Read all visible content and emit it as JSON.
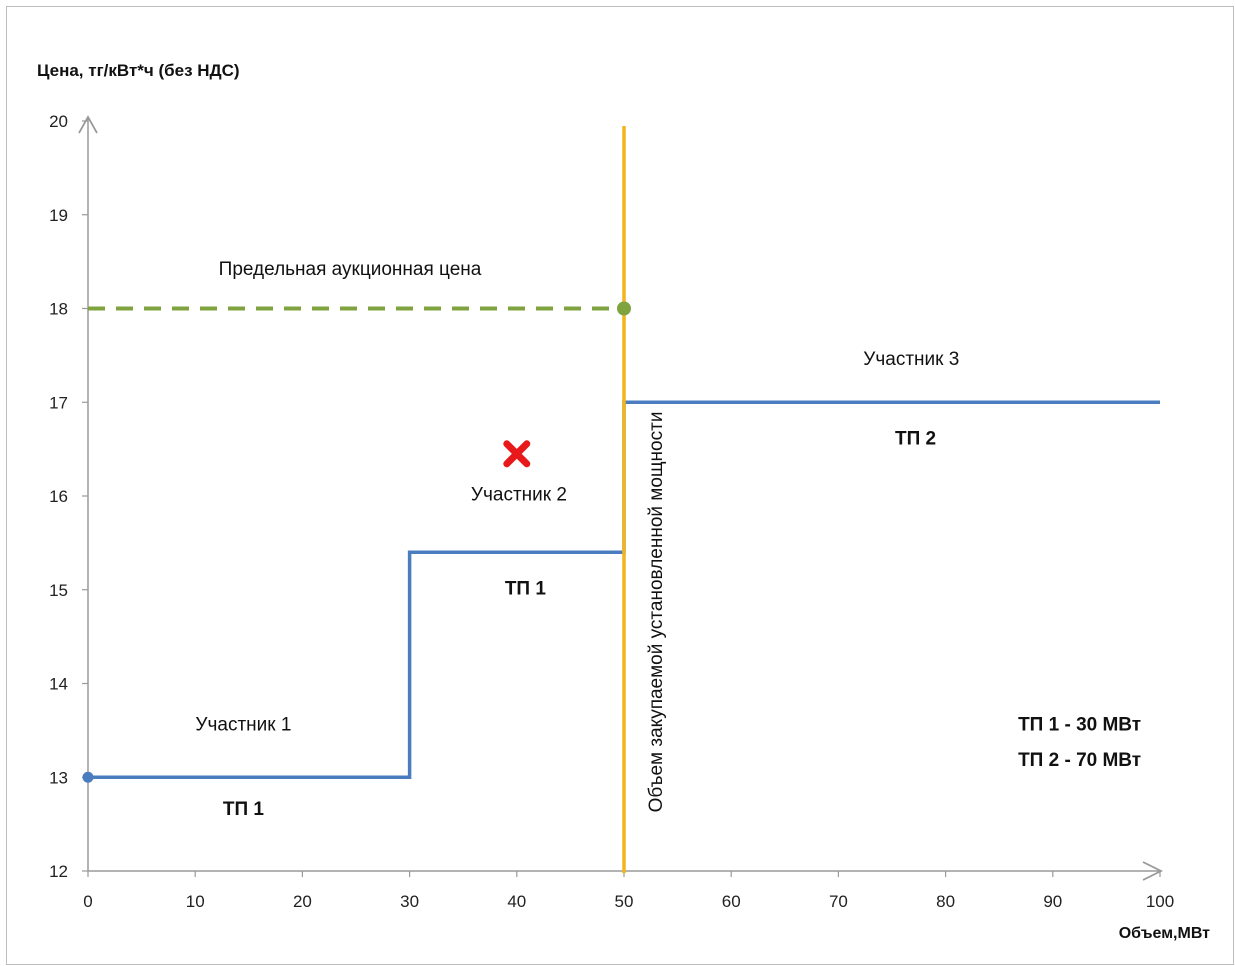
{
  "chart_data": {
    "type": "line",
    "title": "",
    "ylabel": "Цена, тг/кВт*ч (без НДС)",
    "xlabel": "Объем,МВт",
    "xlim": [
      0,
      100
    ],
    "ylim": [
      12,
      20
    ],
    "x_ticks": [
      0,
      10,
      20,
      30,
      40,
      50,
      60,
      70,
      80,
      90,
      100
    ],
    "y_ticks": [
      12,
      13,
      14,
      15,
      16,
      17,
      18,
      19,
      20
    ],
    "grid": false,
    "series": [
      {
        "color": "#4a7dbf",
        "x": [
          0,
          30,
          30,
          50,
          50,
          100
        ],
        "y": [
          13,
          13,
          15.4,
          15.4,
          17,
          17
        ]
      }
    ],
    "price_cap": {
      "label": "Предельная аукционная цена",
      "x": [
        0,
        50
      ],
      "y": 18,
      "color": "#7ea33f"
    },
    "procured_volume": {
      "label": "Объем закупаемой установленной мощности",
      "x": 50,
      "color": "#f2b51f"
    },
    "rejected_marker": {
      "x": 40,
      "y": 16.45,
      "color": "#e8191b",
      "icon": "x-mark-icon"
    },
    "annotations": [
      {
        "text": "Участник 1",
        "x": 14.5,
        "y": 13.5,
        "bold": false
      },
      {
        "text": "ТП 1",
        "x": 14.5,
        "y": 12.6,
        "bold": true
      },
      {
        "text": "Участник 2",
        "x": 40.2,
        "y": 15.95,
        "bold": false
      },
      {
        "text": "ТП 1",
        "x": 40.8,
        "y": 14.95,
        "bold": true
      },
      {
        "text": "Участник 3",
        "x": 76.8,
        "y": 17.4,
        "bold": false
      },
      {
        "text": "ТП 2",
        "x": 77.2,
        "y": 16.55,
        "bold": true
      },
      {
        "text": "ТП 1 - 30 МВт",
        "x": 92.5,
        "y": 13.5,
        "bold": true
      },
      {
        "text": "ТП 2 - 70 МВт",
        "x": 92.5,
        "y": 13.12,
        "bold": true
      }
    ]
  }
}
